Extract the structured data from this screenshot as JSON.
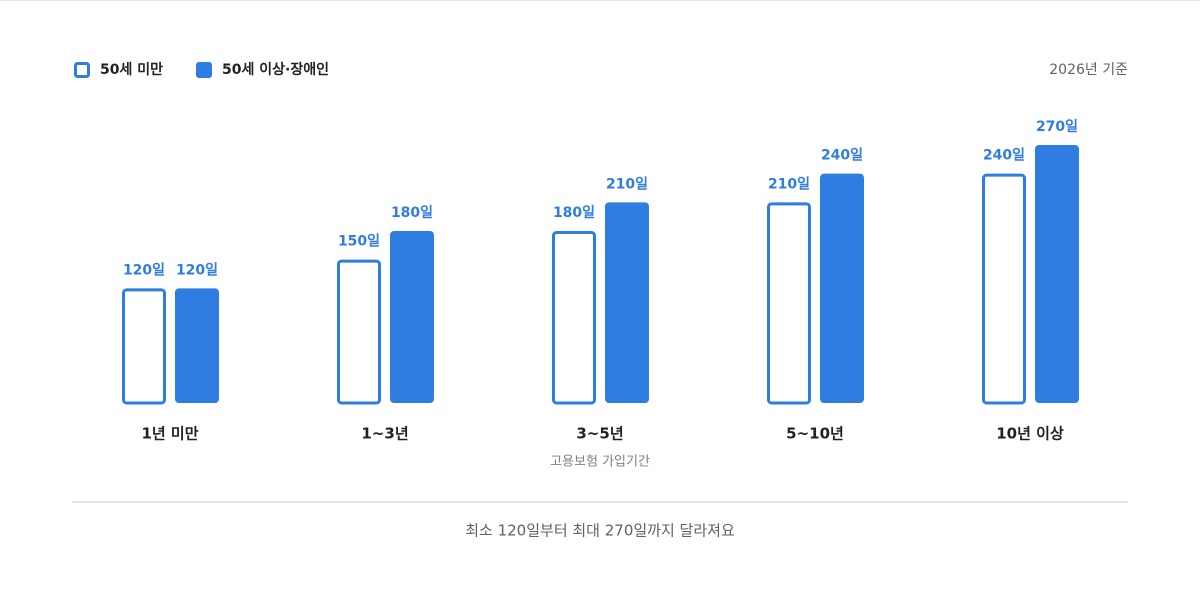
{
  "chart_data": {
    "type": "bar",
    "note": "2026년 기준",
    "x_label": "고용보험 가입기간",
    "footnote": "최소 120일부터 최대 270일까지 달라져요",
    "categories": [
      "1년 미만",
      "1~3년",
      "3~5년",
      "5~10년",
      "10년 이상"
    ],
    "series": [
      {
        "name": "50세 미만",
        "color": "#2f7de1",
        "outline": true,
        "values": [
          120,
          150,
          180,
          210,
          240
        ],
        "value_labels": [
          "120일",
          "150일",
          "180일",
          "210일",
          "240일"
        ]
      },
      {
        "name": "50세 이상·장애인",
        "color": "#2f7de1",
        "outline": false,
        "values": [
          120,
          180,
          210,
          240,
          270
        ],
        "value_labels": [
          "120일",
          "180일",
          "210일",
          "240일",
          "270일"
        ]
      }
    ]
  }
}
